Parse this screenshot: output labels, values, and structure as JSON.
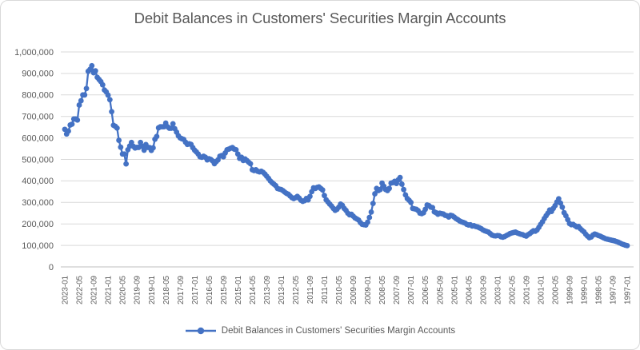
{
  "chart_data": {
    "type": "line",
    "title": "Debit Balances in Customers' Securities Margin Accounts",
    "legend_position": "bottom",
    "grid": "horizontal",
    "x_axis": {
      "order": "newest_to_oldest_monthly",
      "first": "2023-01",
      "last": "1997-01",
      "tick_every_months": 8,
      "tick_labels": [
        "2023-01",
        "2022-05",
        "2021-09",
        "2021-01",
        "2020-05",
        "2019-09",
        "2019-01",
        "2018-05",
        "2017-09",
        "2017-01",
        "2016-05",
        "2015-09",
        "2015-01",
        "2014-05",
        "2013-09",
        "2013-01",
        "2012-05",
        "2011-09",
        "2011-01",
        "2010-05",
        "2009-09",
        "2009-01",
        "2008-05",
        "2007-09",
        "2007-01",
        "2006-05",
        "2005-09",
        "2005-01",
        "2004-05",
        "2003-09",
        "2003-01",
        "2002-05",
        "2001-09",
        "2001-01",
        "2000-05",
        "1999-09",
        "1999-01",
        "1998-05",
        "1997-09",
        "1997-01"
      ]
    },
    "y_axis": {
      "min": 0,
      "max": 1000000,
      "step": 100000,
      "tick_labels": [
        "0",
        "100,000",
        "200,000",
        "300,000",
        "400,000",
        "500,000",
        "600,000",
        "700,000",
        "800,000",
        "900,000",
        "1,000,000"
      ]
    },
    "series": [
      {
        "name": "Debit Balances in Customers' Securities Margin Accounts",
        "color": "#4472C4",
        "marker": "circle",
        "values": [
          640000,
          618000,
          632000,
          660000,
          664000,
          688000,
          688000,
          683000,
          753000,
          773000,
          800000,
          800000,
          830000,
          910000,
          919000,
          936000,
          903000,
          912000,
          882000,
          872000,
          862000,
          847000,
          823000,
          814000,
          799000,
          778000,
          722000,
          659000,
          654000,
          646000,
          589000,
          557000,
          525000,
          525000,
          479000,
          545000,
          562000,
          579000,
          561000,
          553000,
          556000,
          556000,
          579000,
          561000,
          543000,
          569000,
          556000,
          555000,
          542000,
          554000,
          594000,
          607000,
          647000,
          652000,
          652000,
          652000,
          669000,
          652000,
          645000,
          645000,
          666000,
          643000,
          627000,
          610000,
          600000,
          596000,
          593000,
          580000,
          570000,
          573000,
          570000,
          555000,
          543000,
          535000,
          525000,
          512000,
          510000,
          515000,
          510000,
          498000,
          503000,
          500000,
          493000,
          480000,
          490000,
          498000,
          515000,
          518000,
          512000,
          530000,
          545000,
          548000,
          552000,
          555000,
          548000,
          545000,
          525000,
          505000,
          510000,
          495000,
          502000,
          495000,
          487000,
          480000,
          452000,
          448000,
          452000,
          445000,
          442000,
          445000,
          440000,
          432000,
          422000,
          412000,
          400000,
          392000,
          385000,
          378000,
          365000,
          362000,
          360000,
          355000,
          348000,
          342000,
          338000,
          330000,
          322000,
          318000,
          322000,
          328000,
          320000,
          310000,
          305000,
          308000,
          318000,
          312000,
          328000,
          350000,
          368000,
          365000,
          370000,
          372000,
          365000,
          358000,
          332000,
          312000,
          302000,
          292000,
          283000,
          272000,
          263000,
          268000,
          278000,
          292000,
          286000,
          272000,
          263000,
          250000,
          242000,
          245000,
          236000,
          228000,
          223000,
          218000,
          206000,
          198000,
          196000,
          195000,
          208000,
          230000,
          255000,
          295000,
          340000,
          365000,
          355000,
          360000,
          390000,
          375000,
          360000,
          355000,
          365000,
          390000,
          392000,
          398000,
          388000,
          405000,
          416000,
          385000,
          360000,
          335000,
          318000,
          310000,
          300000,
          272000,
          270000,
          268000,
          262000,
          250000,
          248000,
          252000,
          268000,
          288000,
          285000,
          278000,
          276000,
          256000,
          252000,
          245000,
          250000,
          248000,
          246000,
          240000,
          238000,
          232000,
          240000,
          238000,
          232000,
          225000,
          220000,
          214000,
          210000,
          207000,
          204000,
          198000,
          195000,
          196000,
          190000,
          192000,
          188000,
          186000,
          182000,
          178000,
          172000,
          168000,
          165000,
          162000,
          155000,
          148000,
          145000,
          144000,
          146000,
          145000,
          140000,
          138000,
          141000,
          146000,
          150000,
          155000,
          158000,
          160000,
          162000,
          158000,
          155000,
          152000,
          150000,
          146000,
          143000,
          150000,
          155000,
          162000,
          168000,
          166000,
          172000,
          184000,
          198000,
          210000,
          225000,
          238000,
          250000,
          265000,
          258000,
          272000,
          285000,
          302000,
          317000,
          297000,
          278000,
          252000,
          238000,
          220000,
          202000,
          196000,
          198000,
          192000,
          186000,
          188000,
          178000,
          170000,
          163000,
          152000,
          143000,
          136000,
          139000,
          148000,
          153000,
          150000,
          146000,
          143000,
          139000,
          135000,
          131000,
          129000,
          127000,
          125000,
          123000,
          121000,
          118000,
          115000,
          111000,
          107000,
          104000,
          101000,
          99000
        ]
      }
    ]
  },
  "colors": {
    "series": "#4472C4",
    "gridline": "#D9D9D9",
    "axis_line": "#BFBFBF",
    "text": "#595959",
    "background": "#FFFFFF",
    "frame_border": "#D9D9D9"
  }
}
